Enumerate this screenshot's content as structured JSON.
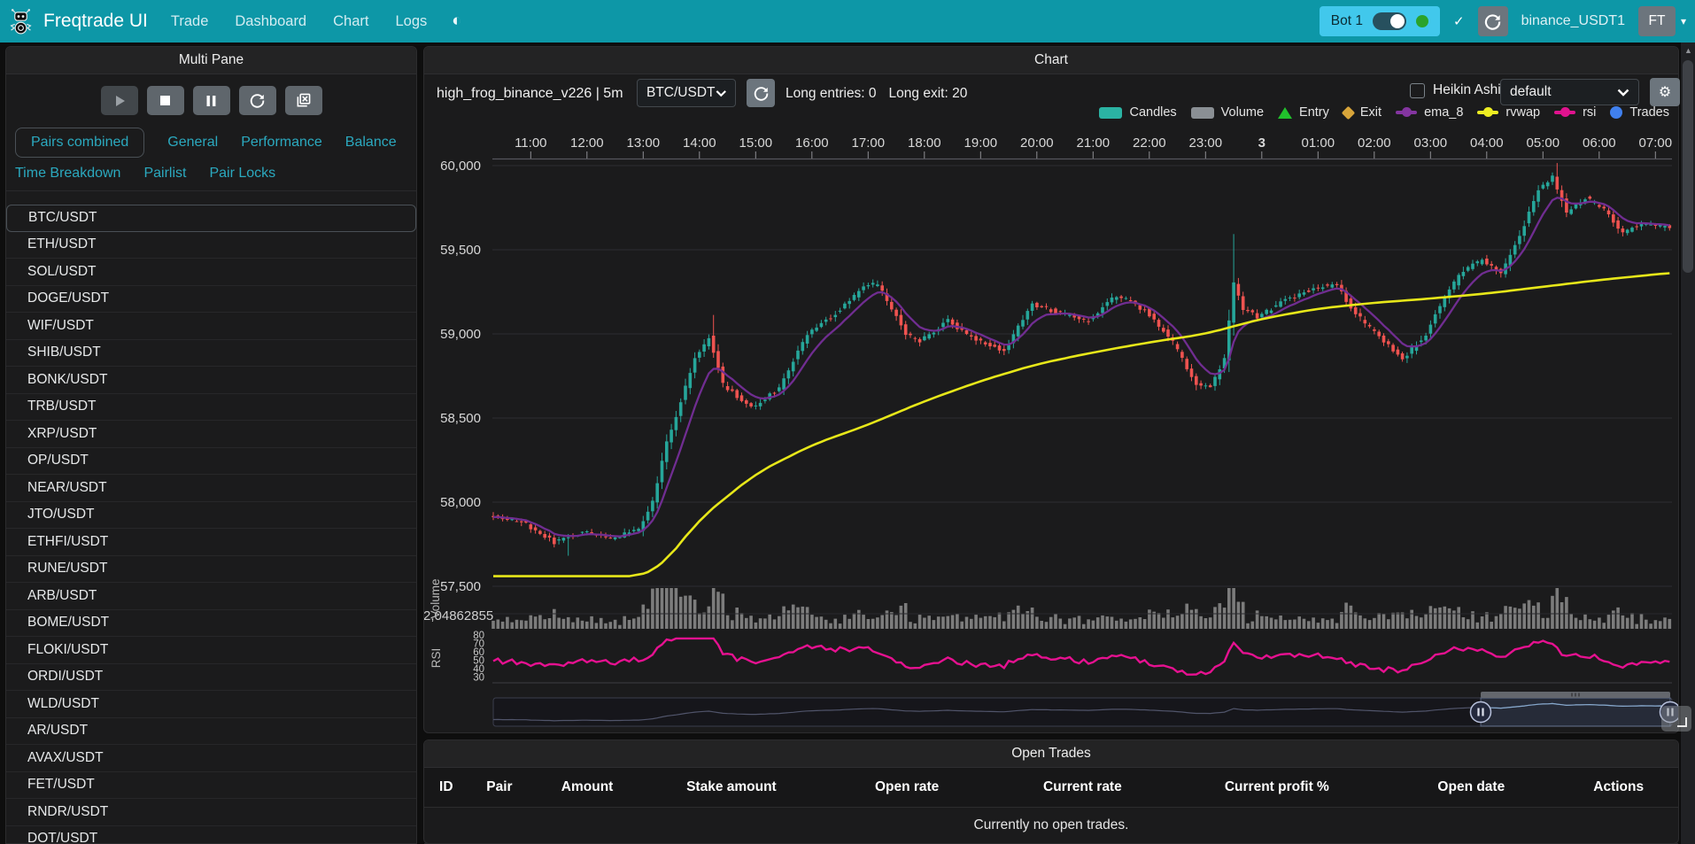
{
  "navbar": {
    "brand": "Freqtrade UI",
    "links": [
      "Trade",
      "Dashboard",
      "Chart",
      "Logs"
    ],
    "bot_name": "Bot 1",
    "login_info": "binance_USDT1",
    "avatar": "FT"
  },
  "icons": {
    "theme": "◐",
    "check": "✓",
    "caret": "▾",
    "gear": "⚙",
    "scroll_up": "▲"
  },
  "sidebar": {
    "title": "Multi Pane",
    "tabs": [
      "Pairs combined",
      "General",
      "Performance",
      "Balance",
      "Time Breakdown",
      "Pairlist",
      "Pair Locks"
    ],
    "active_tab": "Pairs combined",
    "pairs": [
      "BTC/USDT",
      "ETH/USDT",
      "SOL/USDT",
      "DOGE/USDT",
      "WIF/USDT",
      "SHIB/USDT",
      "BONK/USDT",
      "TRB/USDT",
      "XRP/USDT",
      "OP/USDT",
      "NEAR/USDT",
      "JTO/USDT",
      "ETHFI/USDT",
      "RUNE/USDT",
      "ARB/USDT",
      "BOME/USDT",
      "FLOKI/USDT",
      "ORDI/USDT",
      "WLD/USDT",
      "AR/USDT",
      "AVAX/USDT",
      "FET/USDT",
      "RNDR/USDT",
      "DOT/USDT"
    ],
    "selected_pair": "BTC/USDT"
  },
  "chart": {
    "title": "Chart",
    "strategy": "high_frog_binance_v226 | 5m",
    "pair_select": "BTC/USDT",
    "long_entries_label": "Long entries: 0",
    "long_exit_label": "Long exit: 20",
    "heikin_ashi_label": "Heikin Ashi",
    "plot_config": "default",
    "legend": [
      {
        "label": "Candles",
        "swatch": "rect",
        "color": "#2bb3a3"
      },
      {
        "label": "Volume",
        "swatch": "rect",
        "color": "#8a8f94"
      },
      {
        "label": "Entry",
        "swatch": "triangle",
        "color": "#21c12c"
      },
      {
        "label": "Exit",
        "swatch": "diamond",
        "color": "#d8a53a"
      },
      {
        "label": "ema_8",
        "swatch": "line",
        "color": "#8435a0"
      },
      {
        "label": "rvwap",
        "swatch": "line",
        "color": "#eded22"
      },
      {
        "label": "rsi",
        "swatch": "line",
        "color": "#e0138e"
      },
      {
        "label": "Trades",
        "swatch": "circle",
        "color": "#4080ee"
      }
    ],
    "chart_data": {
      "type": "candlestick",
      "pair": "BTC/USDT",
      "timeframe": "5m",
      "start_time": "10:20",
      "candle_interval_min": 5,
      "candle_count": 252,
      "x_ticks": [
        "11:00",
        "12:00",
        "13:00",
        "14:00",
        "15:00",
        "16:00",
        "17:00",
        "18:00",
        "19:00",
        "20:00",
        "21:00",
        "22:00",
        "23:00",
        "3",
        "01:00",
        "02:00",
        "03:00",
        "04:00",
        "05:00",
        "06:00",
        "07:00"
      ],
      "y_ticks": [
        {
          "label": "60,000",
          "value": 60000
        },
        {
          "label": "59,500",
          "value": 59500
        },
        {
          "label": "59,000",
          "value": 59000
        },
        {
          "label": "58,500",
          "value": 58500
        },
        {
          "label": "58,000",
          "value": 58000
        },
        {
          "label": "57,500",
          "value": 57500
        }
      ],
      "ylim": [
        57400,
        60100
      ],
      "volume_pane_label": "Volume",
      "volume_axis_label": "2,04862855",
      "rsi_pane_label": "RSI",
      "rsi_ticks": [
        80,
        70,
        60,
        50,
        40,
        30
      ],
      "price_anchors": [
        [
          0,
          57930
        ],
        [
          40,
          57870
        ],
        [
          70,
          57760
        ],
        [
          100,
          57820
        ],
        [
          130,
          57780
        ],
        [
          160,
          57840
        ],
        [
          175,
          58000
        ],
        [
          190,
          58350
        ],
        [
          205,
          58600
        ],
        [
          220,
          58850
        ],
        [
          235,
          58980
        ],
        [
          250,
          58700
        ],
        [
          280,
          58560
        ],
        [
          310,
          58680
        ],
        [
          340,
          59000
        ],
        [
          370,
          59120
        ],
        [
          400,
          59280
        ],
        [
          415,
          59300
        ],
        [
          445,
          59000
        ],
        [
          460,
          58960
        ],
        [
          490,
          59080
        ],
        [
          520,
          58960
        ],
        [
          550,
          58900
        ],
        [
          580,
          59180
        ],
        [
          610,
          59120
        ],
        [
          640,
          59080
        ],
        [
          670,
          59230
        ],
        [
          700,
          59140
        ],
        [
          730,
          58950
        ],
        [
          755,
          58700
        ],
        [
          770,
          58680
        ],
        [
          785,
          58850
        ],
        [
          790,
          59075
        ],
        [
          795,
          59300
        ],
        [
          805,
          59150
        ],
        [
          820,
          59100
        ],
        [
          850,
          59200
        ],
        [
          880,
          59270
        ],
        [
          905,
          59300
        ],
        [
          920,
          59150
        ],
        [
          950,
          58980
        ],
        [
          975,
          58850
        ],
        [
          1000,
          59000
        ],
        [
          1020,
          59220
        ],
        [
          1040,
          59380
        ],
        [
          1060,
          59440
        ],
        [
          1080,
          59360
        ],
        [
          1100,
          59580
        ],
        [
          1120,
          59860
        ],
        [
          1135,
          59940
        ],
        [
          1150,
          59720
        ],
        [
          1170,
          59810
        ],
        [
          1190,
          59740
        ],
        [
          1210,
          59600
        ],
        [
          1230,
          59660
        ],
        [
          1260,
          59630
        ]
      ],
      "rvwap_anchors": [
        [
          0,
          57560
        ],
        [
          160,
          57560
        ],
        [
          180,
          57620
        ],
        [
          220,
          57900
        ],
        [
          280,
          58170
        ],
        [
          340,
          58340
        ],
        [
          400,
          58460
        ],
        [
          460,
          58600
        ],
        [
          520,
          58720
        ],
        [
          580,
          58820
        ],
        [
          640,
          58890
        ],
        [
          700,
          58950
        ],
        [
          760,
          59000
        ],
        [
          820,
          59090
        ],
        [
          880,
          59150
        ],
        [
          940,
          59185
        ],
        [
          1000,
          59210
        ],
        [
          1060,
          59240
        ],
        [
          1120,
          59280
        ],
        [
          1180,
          59320
        ],
        [
          1260,
          59365
        ]
      ],
      "wick_vol_boosts": {
        "16": [
          0,
          80,
          4
        ],
        "34": [
          0,
          0,
          18
        ],
        "35": [
          0,
          0,
          26
        ],
        "36": [
          0,
          0,
          34
        ],
        "37": [
          0,
          0,
          41
        ],
        "38": [
          0,
          0,
          30
        ],
        "39": [
          0,
          0,
          20
        ],
        "47": [
          80,
          0,
          10
        ],
        "158": [
          230,
          0,
          26
        ],
        "226": [
          0,
          0,
          20
        ],
        "227": [
          45,
          0,
          24
        ]
      },
      "colors": {
        "up": "#26a69a",
        "down": "#ef5350",
        "volume": "#8d8d8d",
        "ema_8": "#702d91",
        "rvwap": "#e7e719",
        "rsi": "#e61190",
        "datazoom_shadow": "#50546a",
        "datazoom_shadow_sel": "#86a8cc"
      }
    }
  },
  "open_trades": {
    "title": "Open Trades",
    "columns": [
      "ID",
      "Pair",
      "Amount",
      "Stake amount",
      "Open rate",
      "Current rate",
      "Current profit %",
      "Open date",
      "Actions"
    ],
    "empty_message": "Currently no open trades."
  }
}
